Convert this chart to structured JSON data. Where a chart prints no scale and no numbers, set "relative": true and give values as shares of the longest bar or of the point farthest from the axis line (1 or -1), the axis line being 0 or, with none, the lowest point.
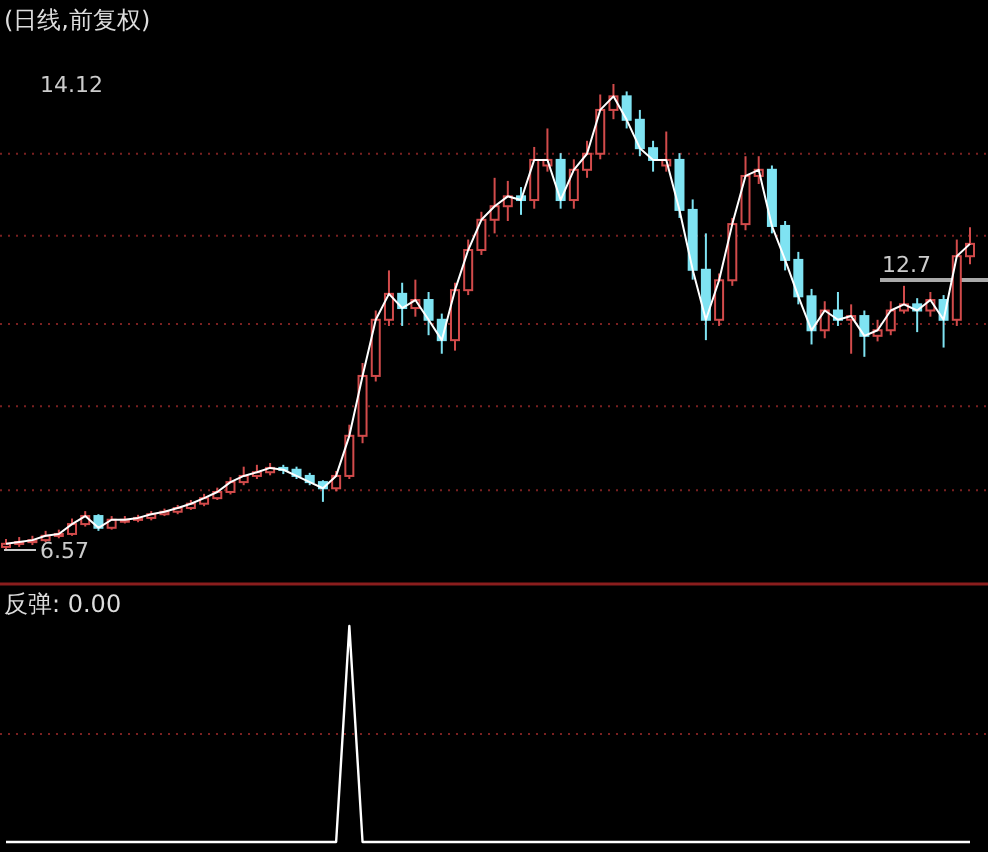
{
  "chart_data": [
    {
      "type": "candlestick",
      "title": "(日线,前复权)",
      "tick_labels": "y",
      "ylim": [
        6.57,
        14.12
      ],
      "ref_lines": [
        {
          "axis": "y",
          "value": 12.99,
          "color": "#7a2020",
          "line_style": "dotted"
        },
        {
          "axis": "y",
          "value": 11.66,
          "color": "#7a2020",
          "line_style": "dotted"
        },
        {
          "axis": "y",
          "value": 10.23,
          "color": "#7a2020",
          "line_style": "dotted"
        },
        {
          "axis": "y",
          "value": 8.9,
          "color": "#7a2020",
          "line_style": "dotted"
        },
        {
          "axis": "y",
          "value": 7.54,
          "color": "#7a2020",
          "line_style": "dotted"
        }
      ],
      "yticks": [
        {
          "value": 6.57,
          "label": "6.57"
        },
        {
          "value": 14.12,
          "label": "14.12"
        }
      ],
      "annotations": [
        "12.7"
      ],
      "categories": [
        null,
        null,
        null,
        null,
        null,
        null,
        null,
        null,
        null,
        null,
        null,
        null,
        null,
        null,
        null,
        null,
        null,
        null,
        null,
        null,
        null,
        null,
        null,
        null,
        null,
        null,
        null,
        null,
        null,
        null,
        null,
        null,
        null,
        null,
        null,
        null,
        null,
        null,
        null,
        null,
        null,
        null,
        null,
        null,
        null,
        null,
        null,
        null,
        null,
        null,
        null,
        null,
        null,
        null,
        null,
        null,
        null,
        null,
        null,
        null,
        null,
        null,
        null,
        null,
        null,
        null,
        null,
        null,
        null,
        null,
        null,
        null,
        null,
        null
      ],
      "ohlc": [
        [
          6.62,
          6.75,
          6.57,
          6.67
        ],
        [
          6.67,
          6.78,
          6.62,
          6.7
        ],
        [
          6.7,
          6.8,
          6.65,
          6.73
        ],
        [
          6.73,
          6.88,
          6.7,
          6.8
        ],
        [
          6.8,
          6.9,
          6.76,
          6.83
        ],
        [
          6.83,
          7.08,
          6.8,
          6.99
        ],
        [
          6.99,
          7.2,
          6.95,
          7.12
        ],
        [
          7.12,
          7.15,
          6.88,
          6.93
        ],
        [
          6.93,
          7.12,
          6.9,
          7.06
        ],
        [
          7.04,
          7.12,
          7.0,
          7.06
        ],
        [
          7.06,
          7.14,
          7.02,
          7.09
        ],
        [
          7.09,
          7.2,
          7.05,
          7.15
        ],
        [
          7.15,
          7.24,
          7.12,
          7.19
        ],
        [
          7.19,
          7.3,
          7.15,
          7.25
        ],
        [
          7.25,
          7.38,
          7.22,
          7.32
        ],
        [
          7.32,
          7.48,
          7.28,
          7.41
        ],
        [
          7.41,
          7.58,
          7.38,
          7.51
        ],
        [
          7.51,
          7.75,
          7.47,
          7.67
        ],
        [
          7.67,
          7.92,
          7.62,
          7.77
        ],
        [
          7.77,
          7.95,
          7.72,
          7.83
        ],
        [
          7.83,
          7.98,
          7.78,
          7.9
        ],
        [
          7.9,
          7.95,
          7.8,
          7.87
        ],
        [
          7.87,
          7.92,
          7.72,
          7.77
        ],
        [
          7.77,
          7.82,
          7.62,
          7.67
        ],
        [
          7.67,
          7.7,
          7.35,
          7.57
        ],
        [
          7.57,
          7.85,
          7.52,
          7.77
        ],
        [
          7.77,
          8.6,
          7.72,
          8.42
        ],
        [
          8.42,
          9.6,
          8.3,
          9.39
        ],
        [
          9.39,
          10.45,
          9.3,
          10.3
        ],
        [
          10.3,
          11.1,
          10.2,
          10.72
        ],
        [
          10.72,
          10.9,
          10.2,
          10.49
        ],
        [
          10.49,
          10.95,
          10.35,
          10.62
        ],
        [
          10.62,
          10.75,
          10.05,
          10.3
        ],
        [
          10.3,
          10.4,
          9.75,
          9.97
        ],
        [
          9.97,
          10.9,
          9.8,
          10.78
        ],
        [
          10.78,
          11.6,
          10.7,
          11.43
        ],
        [
          11.43,
          12.05,
          11.35,
          11.92
        ],
        [
          11.92,
          12.6,
          11.7,
          12.14
        ],
        [
          12.14,
          12.55,
          11.9,
          12.3
        ],
        [
          12.3,
          12.45,
          12.0,
          12.24
        ],
        [
          12.24,
          13.1,
          12.1,
          12.89
        ],
        [
          12.8,
          13.4,
          12.7,
          12.89
        ],
        [
          12.89,
          13.0,
          12.1,
          12.24
        ],
        [
          12.24,
          12.9,
          12.1,
          12.73
        ],
        [
          12.73,
          13.2,
          12.6,
          12.99
        ],
        [
          12.99,
          13.95,
          12.9,
          13.7
        ],
        [
          13.7,
          14.12,
          13.55,
          13.92
        ],
        [
          13.92,
          14.0,
          13.4,
          13.54
        ],
        [
          13.54,
          13.7,
          12.95,
          13.08
        ],
        [
          13.08,
          13.2,
          12.7,
          12.89
        ],
        [
          12.8,
          13.35,
          12.7,
          12.89
        ],
        [
          12.89,
          13.0,
          11.95,
          12.08
        ],
        [
          12.08,
          12.25,
          10.95,
          11.11
        ],
        [
          11.11,
          11.7,
          9.97,
          10.3
        ],
        [
          10.3,
          11.05,
          10.2,
          10.94
        ],
        [
          10.94,
          11.95,
          10.85,
          11.85
        ],
        [
          11.85,
          12.95,
          11.75,
          12.63
        ],
        [
          12.63,
          12.95,
          12.5,
          12.73
        ],
        [
          12.73,
          12.8,
          11.7,
          11.82
        ],
        [
          11.82,
          11.9,
          11.1,
          11.27
        ],
        [
          11.27,
          11.4,
          10.55,
          10.68
        ],
        [
          10.68,
          10.8,
          9.9,
          10.13
        ],
        [
          10.13,
          10.6,
          10.0,
          10.45
        ],
        [
          10.45,
          10.75,
          10.2,
          10.3
        ],
        [
          10.3,
          10.55,
          9.75,
          10.36
        ],
        [
          10.36,
          10.45,
          9.7,
          10.04
        ],
        [
          10.04,
          10.3,
          9.95,
          10.13
        ],
        [
          10.13,
          10.6,
          10.05,
          10.45
        ],
        [
          10.45,
          10.85,
          10.4,
          10.55
        ],
        [
          10.55,
          10.65,
          10.1,
          10.45
        ],
        [
          10.45,
          10.75,
          10.35,
          10.62
        ],
        [
          10.62,
          10.7,
          9.85,
          10.3
        ],
        [
          10.3,
          11.6,
          10.2,
          11.33
        ],
        [
          11.33,
          11.8,
          11.2,
          11.53
        ]
      ],
      "series": [
        {
          "type": "line",
          "color": "#ffffff",
          "values": [
            6.67,
            6.7,
            6.73,
            6.8,
            6.83,
            6.99,
            7.12,
            6.93,
            7.06,
            7.06,
            7.09,
            7.15,
            7.19,
            7.25,
            7.32,
            7.41,
            7.51,
            7.67,
            7.77,
            7.83,
            7.9,
            7.87,
            7.77,
            7.67,
            7.57,
            7.77,
            8.42,
            9.39,
            10.3,
            10.72,
            10.49,
            10.62,
            10.3,
            9.97,
            10.78,
            11.43,
            11.92,
            12.14,
            12.3,
            12.24,
            12.89,
            12.89,
            12.24,
            12.73,
            12.99,
            13.7,
            13.92,
            13.54,
            13.08,
            12.89,
            12.89,
            12.08,
            11.11,
            10.3,
            10.94,
            11.85,
            12.63,
            12.73,
            11.82,
            11.27,
            10.68,
            10.13,
            10.45,
            10.3,
            10.36,
            10.04,
            10.13,
            10.45,
            10.55,
            10.45,
            10.62,
            10.3,
            11.33,
            11.53
          ]
        }
      ]
    },
    {
      "type": "line",
      "relative": true,
      "ref_lines": [
        {
          "axis": "y",
          "value": 0.5,
          "color": "#7a2020",
          "line_style": "dotted"
        }
      ],
      "annotations": [
        "反弹: 0.00"
      ],
      "categories": [
        null,
        null,
        null,
        null,
        null,
        null,
        null,
        null,
        null,
        null,
        null,
        null,
        null,
        null,
        null,
        null,
        null,
        null,
        null,
        null,
        null,
        null,
        null,
        null,
        null,
        null,
        null,
        null,
        null,
        null,
        null,
        null,
        null,
        null,
        null,
        null,
        null,
        null,
        null,
        null,
        null,
        null,
        null,
        null,
        null,
        null,
        null,
        null,
        null,
        null,
        null,
        null,
        null,
        null,
        null,
        null,
        null,
        null,
        null,
        null,
        null,
        null,
        null,
        null,
        null,
        null,
        null,
        null,
        null,
        null,
        null,
        null,
        null,
        null
      ],
      "series": [
        {
          "color": "#ffffff",
          "values": [
            0,
            0,
            0,
            0,
            0,
            0,
            0,
            0,
            0,
            0,
            0,
            0,
            0,
            0,
            0,
            0,
            0,
            0,
            0,
            0,
            0,
            0,
            0,
            0,
            0,
            0,
            1,
            0,
            0,
            0,
            0,
            0,
            0,
            0,
            0,
            0,
            0,
            0,
            0,
            0,
            0,
            0,
            0,
            0,
            0,
            0,
            0,
            0,
            0,
            0,
            0,
            0,
            0,
            0,
            0,
            0,
            0,
            0,
            0,
            0,
            0,
            0,
            0,
            0,
            0,
            0,
            0,
            0,
            0,
            0,
            0,
            0,
            0,
            0
          ]
        }
      ]
    }
  ]
}
